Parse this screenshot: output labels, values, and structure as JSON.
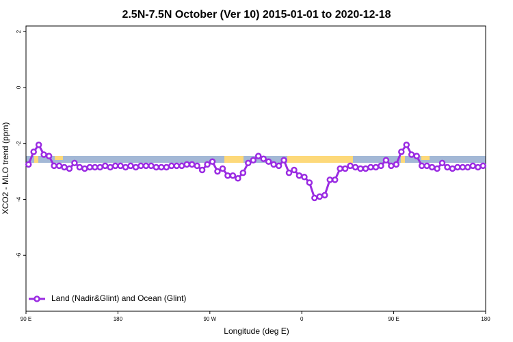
{
  "chart_data": {
    "type": "line",
    "title": "2.5N-7.5N October (Ver 10)   2015-01-01 to 2020-12-18",
    "x_label": "Longitude (deg E)",
    "y_label": "XCO2 - MLO trend (ppm)",
    "x": [
      92.5,
      97.5,
      102.5,
      107.5,
      112.5,
      117.5,
      122.5,
      127.5,
      132.5,
      137.5,
      142.5,
      147.5,
      152.5,
      157.5,
      162.5,
      167.5,
      172.5,
      177.5,
      182.5,
      187.5,
      192.5,
      197.5,
      202.5,
      207.5,
      212.5,
      217.5,
      222.5,
      227.5,
      232.5,
      237.5,
      242.5,
      247.5,
      252.5,
      257.5,
      262.5,
      267.5,
      272.5,
      277.5,
      282.5,
      287.5,
      292.5,
      297.5,
      302.5,
      307.5,
      312.5,
      317.5,
      322.5,
      327.5,
      332.5,
      337.5,
      342.5,
      347.5,
      352.5,
      357.5,
      362.5,
      367.5,
      372.5,
      377.5,
      382.5,
      387.5,
      392.5,
      397.5,
      402.5,
      407.5,
      412.5,
      417.5,
      422.5,
      427.5,
      432.5,
      437.5,
      442.5,
      447.5,
      452.5,
      457.5,
      462.5,
      467.5,
      472.5,
      477.5,
      482.5,
      487.5,
      492.5,
      497.5,
      502.5,
      507.5,
      512.5,
      517.5,
      522.5,
      527.5,
      532.5,
      537.5
    ],
    "series": [
      {
        "name": "Land (Nadir&Glint) and Ocean (Glint)",
        "color": "#9a2be2",
        "values": [
          -2.75,
          -2.3,
          -2.05,
          -2.4,
          -2.45,
          -2.8,
          -2.8,
          -2.85,
          -2.9,
          -2.7,
          -2.85,
          -2.9,
          -2.85,
          -2.85,
          -2.85,
          -2.8,
          -2.85,
          -2.8,
          -2.8,
          -2.85,
          -2.8,
          -2.85,
          -2.8,
          -2.8,
          -2.8,
          -2.85,
          -2.85,
          -2.85,
          -2.8,
          -2.8,
          -2.8,
          -2.75,
          -2.75,
          -2.8,
          -2.95,
          -2.75,
          -2.65,
          -3.0,
          -2.9,
          -3.15,
          -3.15,
          -3.25,
          -3.05,
          -2.7,
          -2.6,
          -2.45,
          -2.55,
          -2.65,
          -2.75,
          -2.8,
          -2.6,
          -3.05,
          -2.95,
          -3.15,
          -3.2,
          -3.4,
          -3.95,
          -3.9,
          -3.85,
          -3.3,
          -3.3,
          -2.9,
          -2.9,
          -2.8,
          -2.85,
          -2.9,
          -2.9,
          -2.85,
          -2.85,
          -2.8,
          -2.6,
          -2.8,
          -2.75,
          -2.3,
          -2.05,
          -2.4,
          -2.45,
          -2.8,
          -2.8,
          -2.85,
          -2.9,
          -2.7,
          -2.85,
          -2.9,
          -2.85,
          -2.85,
          -2.85,
          -2.8,
          -2.85,
          -2.8
        ]
      }
    ],
    "xlim": [
      90,
      540
    ],
    "xticks": [
      {
        "value": 90,
        "label": "90 E"
      },
      {
        "value": 180,
        "label": "180"
      },
      {
        "value": 270,
        "label": "90 W"
      },
      {
        "value": 360,
        "label": "0"
      },
      {
        "value": 450,
        "label": "90 E"
      },
      {
        "value": 540,
        "label": "180"
      }
    ],
    "ylim": [
      -8,
      2.2
    ],
    "yticks": [
      2,
      0,
      -2,
      -4,
      -6
    ],
    "legend": "bottom-left"
  }
}
